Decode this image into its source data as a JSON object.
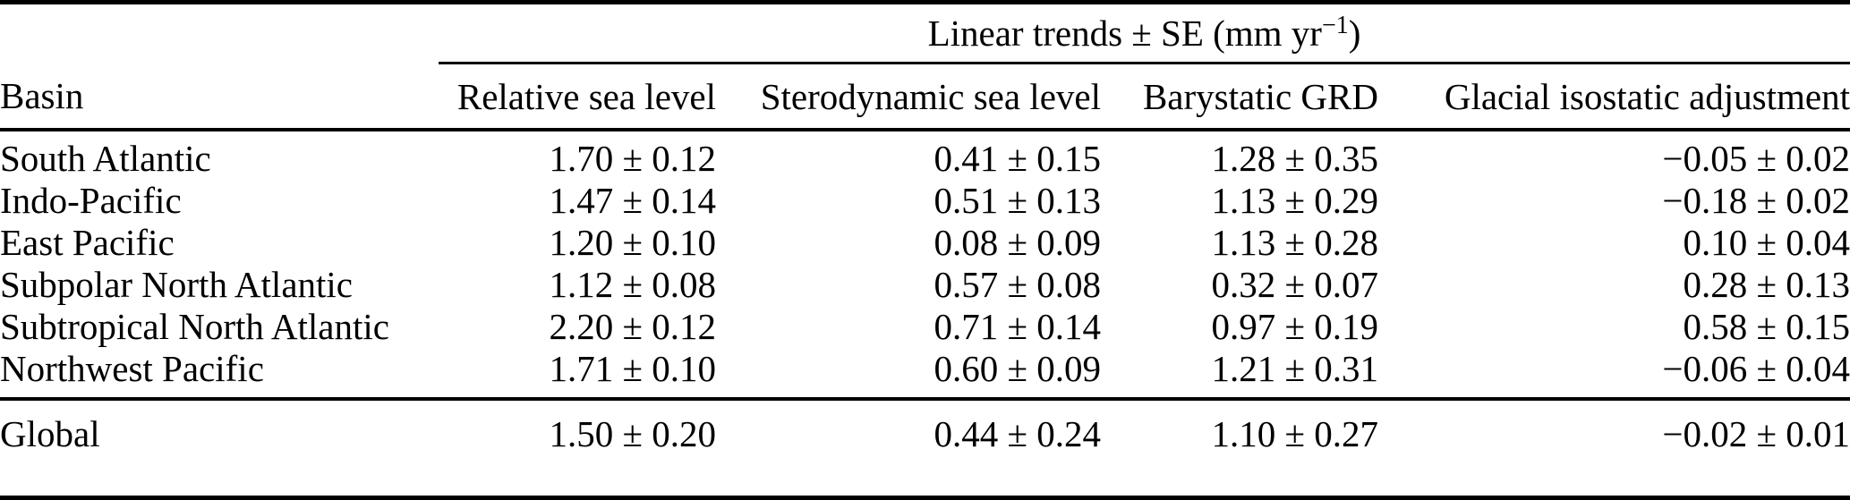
{
  "page": {
    "background_color": "#ffffff",
    "text_color": "#000000",
    "rule_color": "#000000"
  },
  "table": {
    "span_header": {
      "label_base": "Linear trends ± SE (mm yr",
      "label_sup": "−1",
      "label_end": ")"
    },
    "column_headers": {
      "basin": "Basin",
      "relative_sea_level": "Relative sea level",
      "sterodynamic_sea_level": "Sterodynamic sea level",
      "barystatic_grd": "Barystatic GRD",
      "glacial_isostatic_adjustment": "Glacial isostatic adjustment"
    },
    "rows": [
      {
        "basin": "South Atlantic",
        "relative_sea_level": "1.70 ± 0.12",
        "sterodynamic_sea_level": "0.41 ± 0.15",
        "barystatic_grd": "1.28 ± 0.35",
        "glacial_isostatic_adjustment": "−0.05 ± 0.02"
      },
      {
        "basin": "Indo-Pacific",
        "relative_sea_level": "1.47 ± 0.14",
        "sterodynamic_sea_level": "0.51 ± 0.13",
        "barystatic_grd": "1.13 ± 0.29",
        "glacial_isostatic_adjustment": "−0.18 ± 0.02"
      },
      {
        "basin": "East Pacific",
        "relative_sea_level": "1.20 ± 0.10",
        "sterodynamic_sea_level": "0.08 ± 0.09",
        "barystatic_grd": "1.13 ± 0.28",
        "glacial_isostatic_adjustment": "0.10 ± 0.04"
      },
      {
        "basin": "Subpolar North Atlantic",
        "relative_sea_level": "1.12 ± 0.08",
        "sterodynamic_sea_level": "0.57 ± 0.08",
        "barystatic_grd": "0.32 ± 0.07",
        "glacial_isostatic_adjustment": "0.28 ± 0.13"
      },
      {
        "basin": "Subtropical North Atlantic",
        "relative_sea_level": "2.20 ± 0.12",
        "sterodynamic_sea_level": "0.71 ± 0.14",
        "barystatic_grd": "0.97 ± 0.19",
        "glacial_isostatic_adjustment": "0.58 ± 0.15"
      },
      {
        "basin": "Northwest Pacific",
        "relative_sea_level": "1.71 ± 0.10",
        "sterodynamic_sea_level": "0.60 ± 0.09",
        "barystatic_grd": "1.21 ± 0.31",
        "glacial_isostatic_adjustment": "−0.06 ± 0.04"
      }
    ],
    "summary_row": {
      "basin": "Global",
      "relative_sea_level": "1.50 ± 0.20",
      "sterodynamic_sea_level": "0.44 ± 0.24",
      "barystatic_grd": "1.10 ± 0.27",
      "glacial_isostatic_adjustment": "−0.02 ± 0.01"
    }
  }
}
